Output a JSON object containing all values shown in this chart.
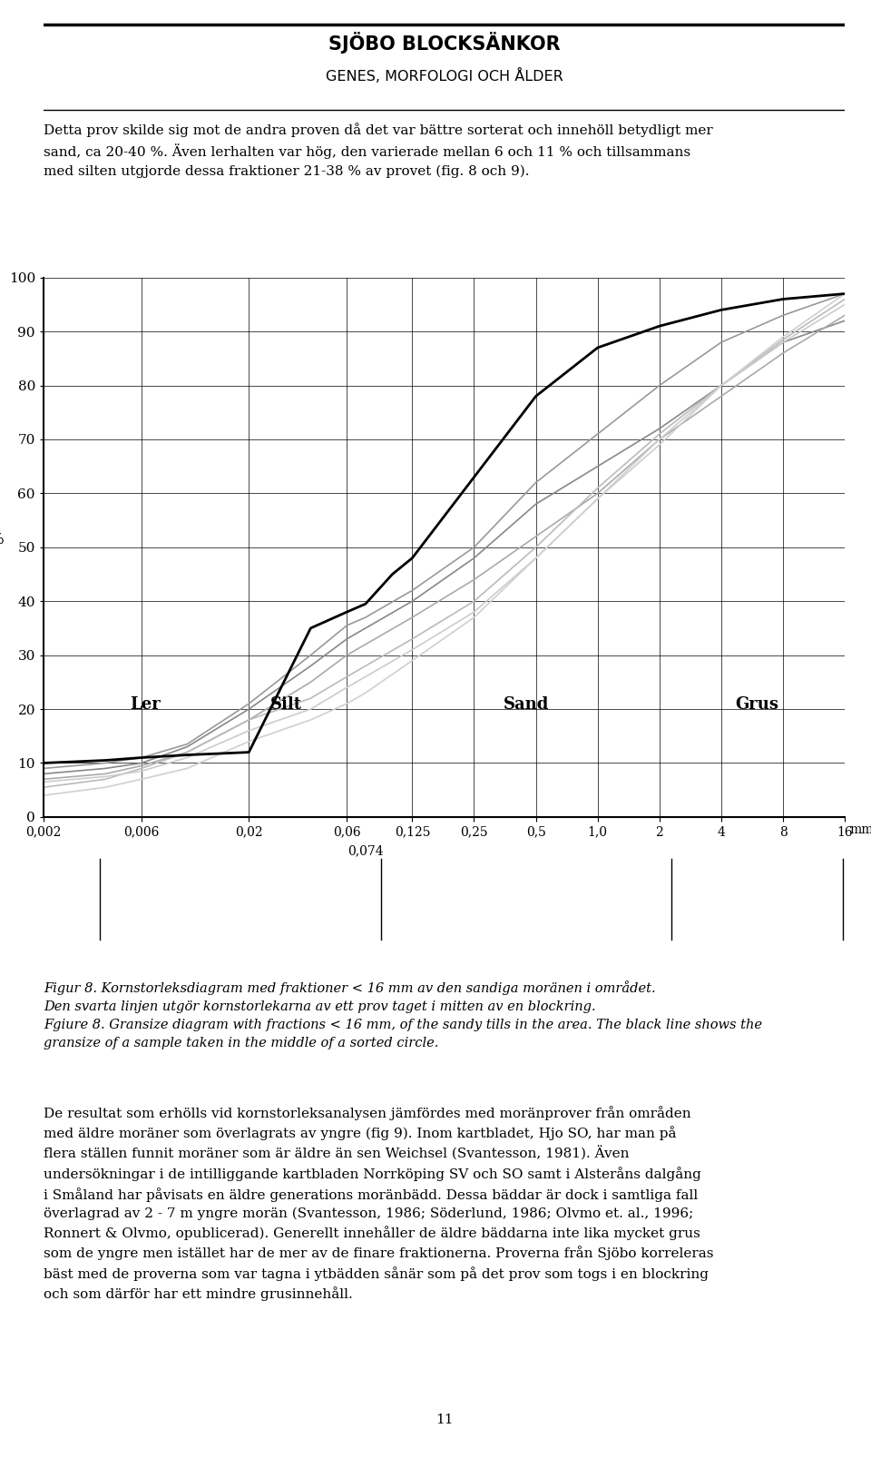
{
  "title_line1": "SJÖBO BLOCKSÄNKOR",
  "title_line2": "GENES, MORFOLOGI OCH ÅLDER",
  "paragraph1": "Detta prov skilde sig mot de andra proven då det var bättre sorterat och innehöll betydligt mer\nsand, ca 20-40 %. Även lerhalten var hög, den varierade mellan 6 och 11 % och tillsammans\nmed silten utgjorde dessa fraktioner 21-38 % av provet (fig. 8 och 9).",
  "ylabel": "%",
  "ylim": [
    0,
    100
  ],
  "yticks": [
    0,
    10,
    20,
    30,
    40,
    50,
    60,
    70,
    80,
    90,
    100
  ],
  "figure_caption_line1": "Figur 8. Kornstorleksdiagram med fraktioner < 16 mm av den sandiga moränen i området.",
  "figure_caption_line2": "Den svarta linjen utgör kornstorlekarna av ett prov taget i mitten av en blockring.",
  "figure_caption_line3": "Fgiure 8. Gransize diagram with fractions < 16 mm, of the sandy tills in the area. The black line shows the",
  "figure_caption_line4": "gransize of a sample taken in the middle of a sorted circle.",
  "black_curve": {
    "x": [
      0.002,
      0.004,
      0.006,
      0.01,
      0.02,
      0.04,
      0.06,
      0.074,
      0.1,
      0.125,
      0.25,
      0.5,
      1.0,
      2.0,
      4.0,
      8.0,
      16.0
    ],
    "y": [
      10.0,
      10.5,
      11.0,
      11.5,
      12.0,
      35.0,
      38.0,
      39.5,
      45.0,
      48.0,
      63.0,
      78.0,
      87.0,
      91.0,
      94.0,
      96.0,
      97.0
    ]
  },
  "gray_curves": [
    {
      "x": [
        0.002,
        0.004,
        0.006,
        0.01,
        0.02,
        0.04,
        0.06,
        0.074,
        0.125,
        0.25,
        0.5,
        1.0,
        2.0,
        4.0,
        8.0,
        16.0
      ],
      "y": [
        8.0,
        9.0,
        10.0,
        13.0,
        20.0,
        28.0,
        33.0,
        35.0,
        40.0,
        48.0,
        58.0,
        65.0,
        72.0,
        80.0,
        88.0,
        92.0
      ],
      "color": "#888888",
      "lw": 1.2
    },
    {
      "x": [
        0.002,
        0.004,
        0.006,
        0.01,
        0.02,
        0.04,
        0.06,
        0.074,
        0.125,
        0.25,
        0.5,
        1.0,
        2.0,
        4.0,
        8.0,
        16.0
      ],
      "y": [
        7.0,
        8.0,
        9.5,
        12.0,
        18.0,
        25.0,
        30.0,
        32.0,
        37.0,
        44.0,
        52.0,
        60.0,
        70.0,
        78.0,
        86.0,
        93.0
      ],
      "color": "#aaaaaa",
      "lw": 1.2
    },
    {
      "x": [
        0.002,
        0.004,
        0.006,
        0.01,
        0.02,
        0.04,
        0.06,
        0.074,
        0.125,
        0.25,
        0.5,
        1.0,
        2.0,
        4.0,
        8.0,
        16.0
      ],
      "y": [
        5.5,
        7.0,
        9.0,
        12.0,
        18.0,
        22.0,
        26.0,
        28.0,
        33.0,
        40.0,
        50.0,
        61.0,
        71.0,
        80.0,
        88.5,
        96.0
      ],
      "color": "#bbbbbb",
      "lw": 1.2
    },
    {
      "x": [
        0.002,
        0.004,
        0.006,
        0.01,
        0.02,
        0.04,
        0.06,
        0.074,
        0.125,
        0.25,
        0.5,
        1.0,
        2.0,
        4.0,
        8.0,
        16.0
      ],
      "y": [
        9.0,
        10.0,
        11.0,
        13.5,
        21.0,
        30.0,
        35.5,
        37.0,
        42.0,
        50.0,
        62.0,
        71.0,
        80.0,
        88.0,
        93.0,
        97.0
      ],
      "color": "#999999",
      "lw": 1.2
    },
    {
      "x": [
        0.002,
        0.004,
        0.006,
        0.01,
        0.02,
        0.04,
        0.06,
        0.074,
        0.125,
        0.25,
        0.5,
        1.0,
        2.0,
        4.0,
        8.0,
        16.0
      ],
      "y": [
        6.5,
        7.5,
        8.5,
        11.0,
        16.0,
        20.0,
        24.0,
        26.0,
        31.0,
        38.0,
        48.0,
        59.0,
        69.0,
        80.0,
        88.0,
        95.0
      ],
      "color": "#cccccc",
      "lw": 1.2
    },
    {
      "x": [
        0.002,
        0.004,
        0.006,
        0.01,
        0.02,
        0.04,
        0.06,
        0.074,
        0.125,
        0.25,
        0.5,
        1.0,
        2.0,
        4.0,
        8.0,
        16.0
      ],
      "y": [
        4.0,
        5.5,
        7.0,
        9.0,
        14.0,
        18.0,
        21.0,
        23.0,
        29.0,
        37.0,
        48.0,
        59.0,
        70.0,
        80.0,
        89.0,
        97.0
      ],
      "color": "#d0d0d0",
      "lw": 1.2
    }
  ],
  "background_color": "#ffffff",
  "page_number": "11",
  "remaining_text": "De resultat som erhölls vid kornstorleksanalysen jämfördes med moränprover från områden\nmed äldre moräner som överlagrats av yngre (fig 9). Inom kartbladet, Hjo SO, har man på\nflera ställen funnit moräner som är äldre än sen Weichsel (Svantesson, 1981). Även\nundersökningar i de intilliggande kartbladen Norrköping SV och SO samt i Alsteråns dalgång\ni Småland har påvisats en äldre generations moränbädd. Dessa bäddar är dock i samtliga fall\növerlagrad av 2 - 7 m yngre morän (Svantesson, 1986; Söderlund, 1986; Olvmo et. al., 1996;\nRonnert & Olvmo, opublicerad). Generellt innehåller de äldre bäddarna inte lika mycket grus\nsom de yngre men istället har de mer av de finare fraktionerna. Proverna från Sjöbo korreleras\nbäst med de proverna som var tagna i ytbädden sånär som på det prov som togs i en blockring\noch som därför har ett mindre grusinnehåll."
}
